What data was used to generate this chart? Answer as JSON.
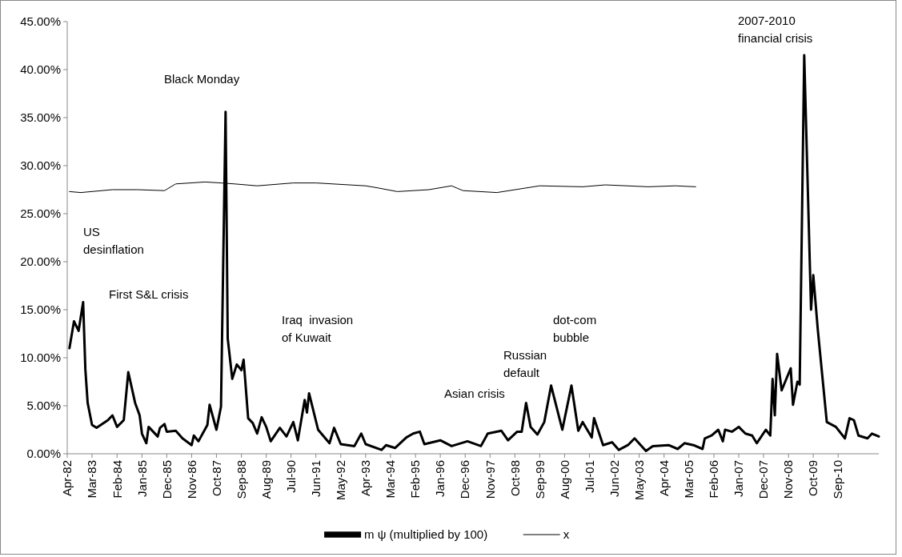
{
  "chart_data": {
    "type": "line",
    "legend": "bottom",
    "marker": "none",
    "line_style": "solid",
    "xlim": [
      "1982-04",
      "2012-03"
    ],
    "xticks": [
      {
        "value": "1982-04",
        "label": "Apr-82"
      },
      {
        "value": "1983-03",
        "label": "Mar-83"
      },
      {
        "value": "1984-02",
        "label": "Feb-84"
      },
      {
        "value": "1985-01",
        "label": "Jan-85"
      },
      {
        "value": "1985-12",
        "label": "Dec-85"
      },
      {
        "value": "1986-11",
        "label": "Nov-86"
      },
      {
        "value": "1987-10",
        "label": "Oct-87"
      },
      {
        "value": "1988-09",
        "label": "Sep-88"
      },
      {
        "value": "1989-08",
        "label": "Aug-89"
      },
      {
        "value": "1990-07",
        "label": "Jul-90"
      },
      {
        "value": "1991-06",
        "label": "Jun-91"
      },
      {
        "value": "1992-05",
        "label": "May-92"
      },
      {
        "value": "1993-04",
        "label": "Apr-93"
      },
      {
        "value": "1994-03",
        "label": "Mar-94"
      },
      {
        "value": "1995-02",
        "label": "Feb-95"
      },
      {
        "value": "1996-01",
        "label": "Jan-96"
      },
      {
        "value": "1996-12",
        "label": "Dec-96"
      },
      {
        "value": "1997-11",
        "label": "Nov-97"
      },
      {
        "value": "1998-10",
        "label": "Oct-98"
      },
      {
        "value": "1999-09",
        "label": "Sep-99"
      },
      {
        "value": "2000-08",
        "label": "Aug-00"
      },
      {
        "value": "2001-07",
        "label": "Jul-01"
      },
      {
        "value": "2002-06",
        "label": "Jun-02"
      },
      {
        "value": "2003-05",
        "label": "May-03"
      },
      {
        "value": "2004-04",
        "label": "Apr-04"
      },
      {
        "value": "2005-03",
        "label": "Mar-05"
      },
      {
        "value": "2006-02",
        "label": "Feb-06"
      },
      {
        "value": "2007-01",
        "label": "Jan-07"
      },
      {
        "value": "2007-12",
        "label": "Dec-07"
      },
      {
        "value": "2008-11",
        "label": "Nov-08"
      },
      {
        "value": "2009-10",
        "label": "Oct-09"
      },
      {
        "value": "2010-09",
        "label": "Sep-10"
      }
    ],
    "ylim": [
      0,
      45
    ],
    "yticks": [
      {
        "value": 0,
        "label": "0.00%"
      },
      {
        "value": 5,
        "label": "5.00%"
      },
      {
        "value": 10,
        "label": "10.00%"
      },
      {
        "value": 15,
        "label": "15.00%"
      },
      {
        "value": 20,
        "label": "20.00%"
      },
      {
        "value": 25,
        "label": "25.00%"
      },
      {
        "value": 30,
        "label": "30.00%"
      },
      {
        "value": 35,
        "label": "35.00%"
      },
      {
        "value": 40,
        "label": "40.00%"
      },
      {
        "value": 45,
        "label": "45.00%"
      }
    ],
    "series": [
      {
        "name": "m ψ (multiplied by 100)",
        "color": "#000000",
        "x": [
          "1982-05",
          "1982-07",
          "1982-09",
          "1982-11",
          "1982-12",
          "1983-01",
          "1983-03",
          "1983-05",
          "1983-10",
          "1983-12",
          "1984-02",
          "1984-05",
          "1984-07",
          "1984-10",
          "1984-12",
          "1985-01",
          "1985-03",
          "1985-04",
          "1985-08",
          "1985-09",
          "1985-11",
          "1985-12",
          "1986-04",
          "1986-07",
          "1986-11",
          "1986-12",
          "1987-02",
          "1987-06",
          "1987-07",
          "1987-10",
          "1987-12",
          "1988-02",
          "1988-03",
          "1988-05",
          "1988-07",
          "1988-09",
          "1988-10",
          "1988-12",
          "1989-02",
          "1989-04",
          "1989-06",
          "1989-08",
          "1989-10",
          "1990-02",
          "1990-05",
          "1990-08",
          "1990-10",
          "1991-01",
          "1991-02",
          "1991-03",
          "1991-07",
          "1991-12",
          "1992-02",
          "1992-05",
          "1992-11",
          "1993-02",
          "1993-04",
          "1993-11",
          "1994-01",
          "1994-05",
          "1994-10",
          "1995-01",
          "1995-04",
          "1995-06",
          "1996-01",
          "1996-06",
          "1997-01",
          "1997-07",
          "1997-10",
          "1998-04",
          "1998-07",
          "1998-11",
          "1999-01",
          "1999-03",
          "1999-05",
          "1999-08",
          "1999-11",
          "2000-02",
          "2000-07",
          "2000-11",
          "2001-02",
          "2001-04",
          "2001-08",
          "2001-09",
          "2002-01",
          "2002-05",
          "2002-08",
          "2002-12",
          "2003-03",
          "2003-08",
          "2003-11",
          "2004-06",
          "2004-10",
          "2005-01",
          "2005-05",
          "2005-09",
          "2005-10",
          "2006-01",
          "2006-04",
          "2006-06",
          "2006-07",
          "2006-10",
          "2007-01",
          "2007-04",
          "2007-07",
          "2007-09",
          "2008-01",
          "2008-03",
          "2008-04",
          "2008-05",
          "2008-06",
          "2008-08",
          "2008-12",
          "2009-01",
          "2009-03",
          "2009-04",
          "2009-06",
          "2009-09",
          "2009-10",
          "2009-12",
          "2010-04",
          "2010-08",
          "2010-12",
          "2011-02",
          "2011-04",
          "2011-06",
          "2011-10",
          "2011-12",
          "2012-03"
        ],
        "values": [
          11.0,
          13.8,
          12.8,
          15.8,
          8.8,
          5.3,
          3.0,
          2.7,
          3.5,
          4.0,
          2.8,
          3.5,
          8.5,
          5.3,
          4.0,
          2.1,
          1.1,
          2.8,
          1.8,
          2.7,
          3.1,
          2.3,
          2.4,
          1.6,
          0.9,
          1.9,
          1.3,
          3.0,
          5.1,
          2.5,
          4.9,
          35.6,
          12.0,
          7.8,
          9.3,
          8.7,
          9.8,
          3.7,
          3.2,
          2.1,
          3.8,
          2.8,
          1.3,
          2.7,
          1.8,
          3.3,
          1.4,
          5.6,
          4.3,
          6.3,
          2.5,
          1.1,
          2.7,
          1.0,
          0.8,
          2.1,
          1.0,
          0.4,
          0.9,
          0.6,
          1.7,
          2.1,
          2.3,
          1.0,
          1.4,
          0.8,
          1.3,
          0.8,
          2.1,
          2.4,
          1.4,
          2.3,
          2.3,
          5.3,
          2.8,
          2.0,
          3.3,
          7.1,
          2.5,
          7.1,
          2.4,
          3.3,
          1.7,
          3.7,
          0.9,
          1.2,
          0.4,
          0.9,
          1.6,
          0.3,
          0.8,
          0.9,
          0.5,
          1.1,
          0.9,
          0.5,
          1.6,
          1.9,
          2.5,
          1.3,
          2.5,
          2.3,
          2.8,
          2.1,
          1.9,
          1.1,
          2.5,
          1.9,
          7.8,
          4.0,
          10.4,
          6.6,
          8.9,
          5.1,
          7.5,
          7.2,
          41.5,
          15.0,
          18.6,
          12.9,
          3.3,
          2.8,
          1.6,
          3.7,
          3.5,
          1.9,
          1.6,
          2.1,
          1.8
        ]
      },
      {
        "name": "x",
        "color": "#000000",
        "x": [
          "1982-05",
          "1982-10",
          "1983-12",
          "1984-11",
          "1985-11",
          "1986-04",
          "1987-05",
          "1987-12",
          "1988-06",
          "1989-04",
          "1990-08",
          "1991-06",
          "1993-04",
          "1993-09",
          "1994-06",
          "1995-08",
          "1996-06",
          "1996-11",
          "1998-02",
          "1999-09",
          "2001-04",
          "2002-02",
          "2003-09",
          "2004-09",
          "2005-06"
        ],
        "values": [
          27.3,
          27.2,
          27.5,
          27.5,
          27.4,
          28.1,
          28.3,
          28.2,
          28.1,
          27.9,
          28.2,
          28.2,
          27.9,
          27.7,
          27.3,
          27.5,
          27.9,
          27.4,
          27.2,
          27.9,
          27.8,
          28.0,
          27.8,
          27.9,
          27.8
        ]
      }
    ],
    "annotations": [
      "Black Monday",
      "US\ndesinflation",
      "First S&L crisis",
      "Iraq  invasion\nof Kuwait",
      "Asian crisis",
      "Russian\ndefault",
      "dot-com\nbubble",
      "2007-2010\nfinancial crisis"
    ]
  }
}
